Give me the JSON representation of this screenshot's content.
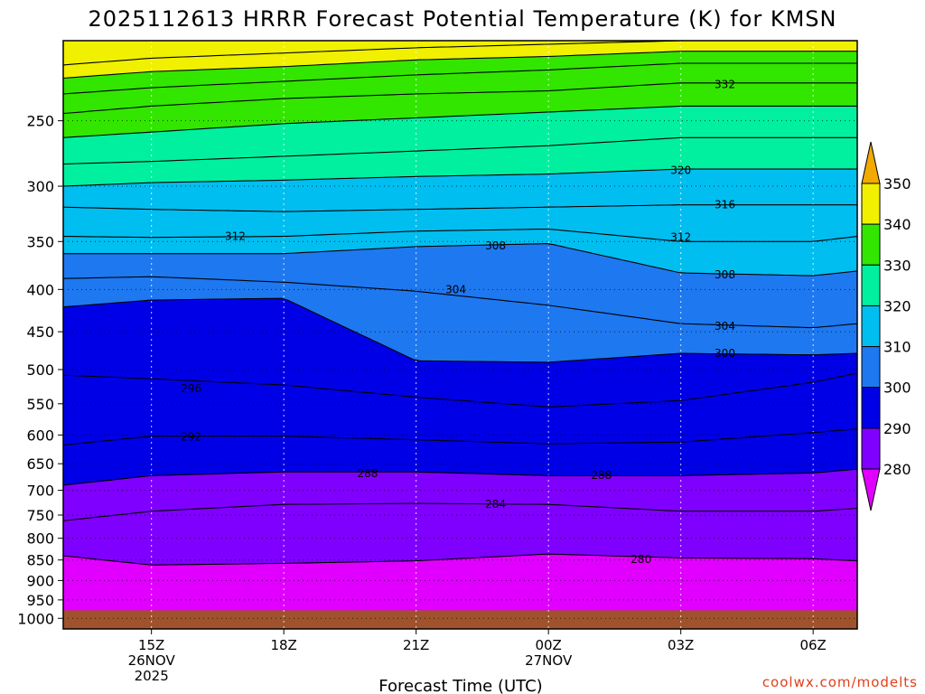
{
  "chart_data": {
    "type": "contour",
    "title": "2025112613 HRRR Forecast Potential Temperature (K) for KMSN",
    "xlabel": "Forecast Time (UTC)",
    "ylabel": "",
    "credit": "coolwx.com/modelts",
    "x_ticks": [
      {
        "hour": 2,
        "label": "15Z",
        "sub1": "26NOV",
        "sub2": "2025"
      },
      {
        "hour": 5,
        "label": "18Z",
        "sub1": "",
        "sub2": ""
      },
      {
        "hour": 8,
        "label": "21Z",
        "sub1": "",
        "sub2": ""
      },
      {
        "hour": 11,
        "label": "00Z",
        "sub1": "27NOV",
        "sub2": ""
      },
      {
        "hour": 14,
        "label": "03Z",
        "sub1": "",
        "sub2": ""
      },
      {
        "hour": 17,
        "label": "06Z",
        "sub1": "",
        "sub2": ""
      }
    ],
    "x_range_hours": [
      0,
      18
    ],
    "y_ticks": [
      {
        "p": 250,
        "label": "250"
      },
      {
        "p": 300,
        "label": "300"
      },
      {
        "p": 350,
        "label": "350"
      },
      {
        "p": 400,
        "label": "400"
      },
      {
        "p": 450,
        "label": "450"
      },
      {
        "p": 500,
        "label": "500"
      },
      {
        "p": 550,
        "label": "550"
      },
      {
        "p": 600,
        "label": "600"
      },
      {
        "p": 650,
        "label": "650"
      },
      {
        "p": 700,
        "label": "700"
      },
      {
        "p": 750,
        "label": "750"
      },
      {
        "p": 800,
        "label": "800"
      },
      {
        "p": 850,
        "label": "850"
      },
      {
        "p": 900,
        "label": "900"
      },
      {
        "p": 950,
        "label": "950"
      },
      {
        "p": 1000,
        "label": "1000"
      }
    ],
    "y_range_hpa": [
      200,
      1030
    ],
    "y_scale": "log",
    "grid": true,
    "surface_pressure_hpa": 978,
    "colorbar": {
      "ticks": [
        "350",
        "340",
        "330",
        "320",
        "310",
        "300",
        "290",
        "280"
      ],
      "bands": [
        {
          "from": 280,
          "to": 290,
          "color": "#8000ff"
        },
        {
          "from": 290,
          "to": 300,
          "color": "#0000e6"
        },
        {
          "from": 300,
          "to": 310,
          "color": "#1e78f0"
        },
        {
          "from": 310,
          "to": 320,
          "color": "#00bef0"
        },
        {
          "from": 320,
          "to": 330,
          "color": "#00f0a0"
        },
        {
          "from": 330,
          "to": 340,
          "color": "#32e600"
        },
        {
          "from": 340,
          "to": 350,
          "color": "#f0f000"
        }
      ],
      "under_color": "#e100ff",
      "over_color": "#f0aa00"
    },
    "ground_color": "#a0522d",
    "contour_interval_k": 4,
    "isentropes": [
      {
        "theta": 280,
        "hours": [
          0,
          2,
          5,
          8,
          11,
          14,
          17,
          18
        ],
        "p": [
          840,
          862,
          858,
          852,
          836,
          845,
          847,
          852
        ]
      },
      {
        "theta": 284,
        "hours": [
          0,
          2,
          5,
          8,
          11,
          14,
          17,
          18
        ],
        "p": [
          762,
          742,
          728,
          726,
          728,
          742,
          742,
          736
        ]
      },
      {
        "theta": 288,
        "hours": [
          0,
          2,
          5,
          8,
          11,
          14,
          17,
          18
        ],
        "p": [
          690,
          672,
          665,
          665,
          672,
          672,
          667,
          660
        ]
      },
      {
        "theta": 292,
        "hours": [
          0,
          2,
          5,
          8,
          11,
          14,
          17,
          18
        ],
        "p": [
          617,
          602,
          602,
          608,
          615,
          612,
          596,
          590
        ]
      },
      {
        "theta": 296,
        "hours": [
          0,
          2,
          5,
          8,
          11,
          14,
          17,
          18
        ],
        "p": [
          508,
          513,
          522,
          540,
          555,
          545,
          518,
          505
        ]
      },
      {
        "theta": 300,
        "hours": [
          0,
          2,
          5,
          8,
          11,
          14,
          17,
          18
        ],
        "p": [
          420,
          412,
          410,
          488,
          490,
          478,
          480,
          478
        ]
      },
      {
        "theta": 304,
        "hours": [
          0,
          2,
          5,
          8,
          11,
          14,
          17,
          18
        ],
        "p": [
          388,
          386,
          392,
          402,
          418,
          440,
          445,
          440
        ]
      },
      {
        "theta": 308,
        "hours": [
          0,
          2,
          5,
          8,
          11,
          14,
          17,
          18
        ],
        "p": [
          362,
          362,
          362,
          355,
          352,
          382,
          385,
          380
        ]
      },
      {
        "theta": 312,
        "hours": [
          0,
          2,
          5,
          8,
          11,
          14,
          17,
          18
        ],
        "p": [
          345,
          346,
          345,
          340,
          338,
          350,
          350,
          345
        ]
      },
      {
        "theta": 316,
        "hours": [
          0,
          2,
          5,
          8,
          11,
          14,
          17,
          18
        ],
        "p": [
          318,
          320,
          322,
          320,
          318,
          316,
          316,
          316
        ]
      },
      {
        "theta": 320,
        "hours": [
          0,
          2,
          5,
          8,
          11,
          14,
          17,
          18
        ],
        "p": [
          300,
          297,
          295,
          292,
          290,
          286,
          286,
          286
        ]
      },
      {
        "theta": 324,
        "hours": [
          0,
          2,
          5,
          8,
          11,
          14,
          17,
          18
        ],
        "p": [
          282,
          280,
          276,
          272,
          268,
          262,
          262,
          262
        ]
      },
      {
        "theta": 328,
        "hours": [
          0,
          2,
          5,
          8,
          11,
          14,
          17,
          18
        ],
        "p": [
          262,
          258,
          252,
          248,
          244,
          240,
          240,
          240
        ]
      },
      {
        "theta": 332,
        "hours": [
          0,
          2,
          5,
          8,
          11,
          14,
          17,
          18
        ],
        "p": [
          245,
          240,
          235,
          232,
          230,
          225,
          225,
          225
        ]
      },
      {
        "theta": 336,
        "hours": [
          0,
          2,
          5,
          8,
          11,
          14,
          17,
          18
        ],
        "p": [
          232,
          228,
          224,
          220,
          217,
          213,
          213,
          213
        ]
      },
      {
        "theta": 340,
        "hours": [
          0,
          2,
          5,
          8,
          11,
          14,
          17,
          18
        ],
        "p": [
          222,
          218,
          215,
          211,
          209,
          206,
          206,
          206
        ]
      },
      {
        "theta": 344,
        "hours": [
          0,
          2,
          5,
          8,
          11,
          14,
          17,
          18
        ],
        "p": [
          214,
          210,
          207,
          204,
          202,
          200,
          200,
          200
        ]
      }
    ],
    "contour_labels": [
      {
        "text": "280",
        "hour": 13.1,
        "p": 848
      },
      {
        "text": "284",
        "hour": 9.8,
        "p": 728
      },
      {
        "text": "288",
        "hour": 6.9,
        "p": 668
      },
      {
        "text": "288",
        "hour": 12.2,
        "p": 671
      },
      {
        "text": "292",
        "hour": 2.9,
        "p": 603
      },
      {
        "text": "296",
        "hour": 2.9,
        "p": 527
      },
      {
        "text": "300",
        "hour": 15.0,
        "p": 478
      },
      {
        "text": "304",
        "hour": 15.0,
        "p": 443
      },
      {
        "text": "304",
        "hour": 8.9,
        "p": 400
      },
      {
        "text": "308",
        "hour": 15.0,
        "p": 384
      },
      {
        "text": "308",
        "hour": 9.8,
        "p": 354
      },
      {
        "text": "312",
        "hour": 3.9,
        "p": 345
      },
      {
        "text": "312",
        "hour": 14.0,
        "p": 346
      },
      {
        "text": "316",
        "hour": 15.0,
        "p": 316
      },
      {
        "text": "320",
        "hour": 14.0,
        "p": 287
      },
      {
        "text": "332",
        "hour": 15.0,
        "p": 226
      }
    ]
  }
}
